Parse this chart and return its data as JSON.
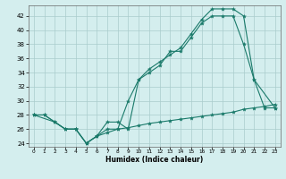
{
  "xlabel": "Humidex (Indice chaleur)",
  "bg_color": "#d4eeee",
  "grid_color": "#aacccc",
  "line_color": "#1a7a6a",
  "xlim": [
    -0.5,
    23.5
  ],
  "ylim": [
    23.5,
    43.5
  ],
  "xticks": [
    0,
    1,
    2,
    3,
    4,
    5,
    6,
    7,
    8,
    9,
    10,
    11,
    12,
    13,
    14,
    15,
    16,
    17,
    18,
    19,
    20,
    21,
    22,
    23
  ],
  "yticks": [
    24,
    26,
    28,
    30,
    32,
    34,
    36,
    38,
    40,
    42
  ],
  "line1_x": [
    0,
    1,
    2,
    3,
    4,
    5,
    6,
    7,
    8,
    9,
    10,
    11,
    12,
    13,
    14,
    15,
    16,
    17,
    18,
    19,
    20,
    21,
    22,
    23
  ],
  "line1_y": [
    28,
    28,
    27,
    26,
    26,
    24,
    25,
    26,
    26,
    30,
    33,
    34,
    35,
    37,
    37,
    39,
    41,
    42,
    42,
    42,
    38,
    33,
    29,
    29
  ],
  "line2_x": [
    0,
    2,
    3,
    4,
    5,
    6,
    7,
    8,
    9,
    10,
    11,
    12,
    13,
    14,
    15,
    16,
    17,
    18,
    19,
    20,
    21,
    23
  ],
  "line2_y": [
    28,
    27,
    26,
    26,
    24,
    25,
    27,
    27,
    26,
    33,
    34.5,
    35.5,
    36.5,
    37.5,
    39.5,
    41.5,
    43,
    43,
    43,
    42,
    33,
    29
  ],
  "line3_x": [
    0,
    1,
    2,
    3,
    4,
    5,
    6,
    7,
    8,
    9,
    10,
    11,
    12,
    13,
    14,
    15,
    16,
    17,
    18,
    19,
    20,
    21,
    22,
    23
  ],
  "line3_y": [
    28,
    28,
    27,
    26,
    26,
    24,
    25,
    25.5,
    26,
    26.2,
    26.5,
    26.8,
    27,
    27.2,
    27.4,
    27.6,
    27.8,
    28,
    28.2,
    28.4,
    28.8,
    29,
    29.2,
    29.5
  ]
}
